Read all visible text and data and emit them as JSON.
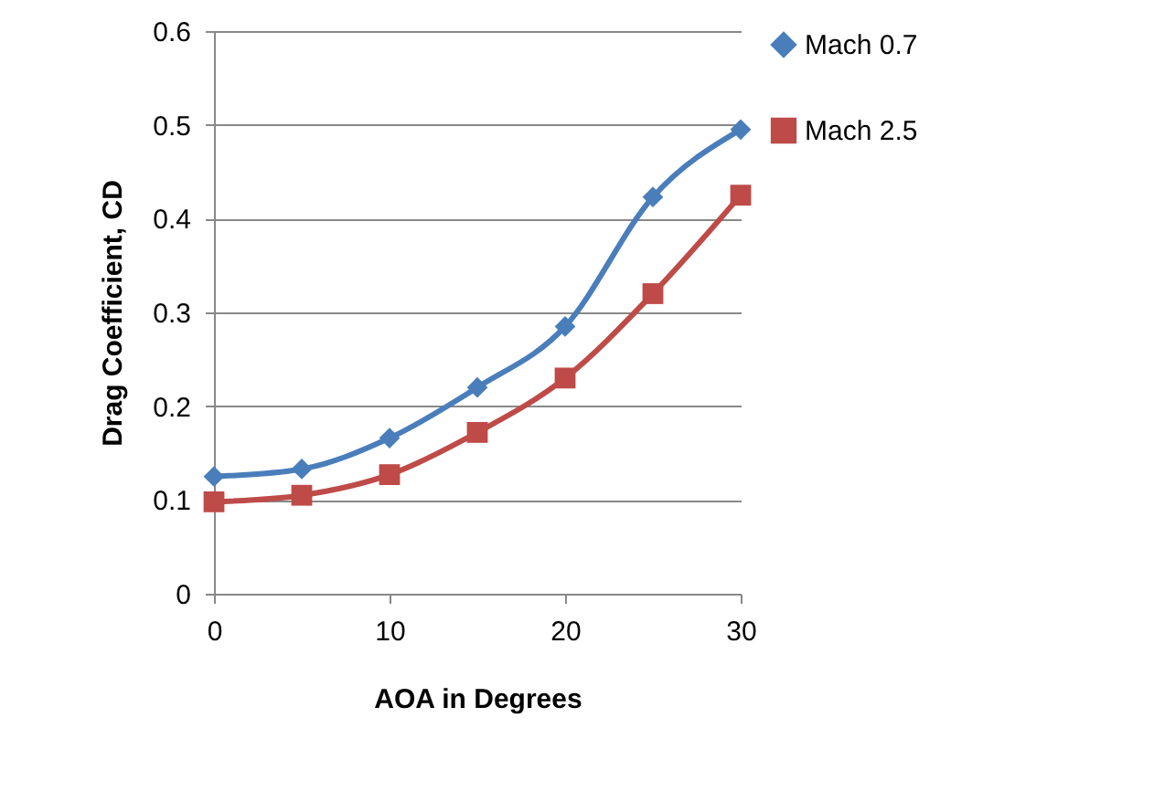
{
  "chart_data": {
    "type": "line",
    "xlabel": "AOA in Degrees",
    "ylabel": "Drag Coefficient, CD",
    "x": [
      0,
      5,
      10,
      15,
      20,
      25,
      30
    ],
    "series": [
      {
        "name": "Mach 0.7",
        "color": "#4a7ebb",
        "marker": "diamond",
        "values": [
          0.125,
          0.133,
          0.166,
          0.22,
          0.285,
          0.423,
          0.495
        ]
      },
      {
        "name": "Mach 2.5",
        "color": "#be4b48",
        "marker": "square",
        "values": [
          0.098,
          0.105,
          0.127,
          0.172,
          0.23,
          0.32,
          0.425
        ]
      }
    ],
    "xlim": [
      0,
      30
    ],
    "xticks": [
      0,
      10,
      20,
      30
    ],
    "ylim": [
      0,
      0.6
    ],
    "yticks": [
      {
        "value": 0,
        "label": "0"
      },
      0.1,
      0.2,
      0.3,
      0.4,
      0.5,
      0.6
    ],
    "grid": "y",
    "legend": "right",
    "line_style": "solid"
  }
}
